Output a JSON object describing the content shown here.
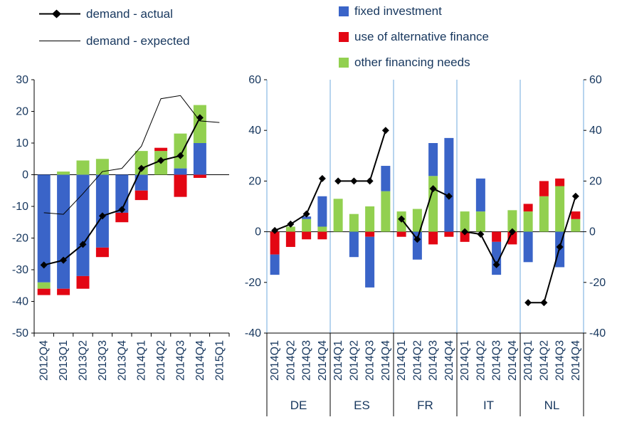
{
  "colors": {
    "blue": "#3a64c8",
    "red": "#e30613",
    "green": "#92d050",
    "line": "#000000",
    "axis": "#000000",
    "text": "#17375e",
    "separator": "#9fc5e8",
    "background": "#ffffff"
  },
  "left_legend": {
    "items": [
      {
        "label": "demand - actual"
      },
      {
        "label": "demand - expected"
      }
    ]
  },
  "right_legend": {
    "items": [
      {
        "label": "fixed investment",
        "color": "blue"
      },
      {
        "label": "use of alternative finance",
        "color": "red"
      },
      {
        "label": "other financing needs",
        "color": "green"
      }
    ]
  },
  "chart_data": [
    {
      "type": "bar",
      "subtype": "stacked bars with overlaid lines",
      "title": "",
      "categories": [
        "2012Q4",
        "2013Q1",
        "2013Q2",
        "2013Q3",
        "2013Q4",
        "2014Q1",
        "2014Q2",
        "2014Q3",
        "2014Q4",
        "2015Q1"
      ],
      "ylim": [
        -50,
        30
      ],
      "yticks": [
        30,
        20,
        10,
        0,
        -10,
        -20,
        -30,
        -40,
        -50
      ],
      "grid": false,
      "bar_series": [
        {
          "name": "fixed investment",
          "color": "blue",
          "values": [
            -34,
            -36,
            -32,
            -23,
            -12,
            -5,
            0,
            2,
            10,
            null
          ]
        },
        {
          "name": "other financing needs",
          "color": "green",
          "values": [
            -2,
            1,
            4.5,
            5,
            0,
            7.5,
            7.5,
            11,
            12,
            null
          ]
        },
        {
          "name": "use of alternative finance",
          "color": "red",
          "values": [
            -2,
            -2,
            -4,
            -3,
            -3,
            -3,
            1,
            -7,
            -1,
            null
          ]
        }
      ],
      "line_series": [
        {
          "name": "demand - actual",
          "marker": "diamond",
          "width": 2,
          "values": [
            -28.5,
            -27,
            -22,
            -13,
            -11,
            2,
            4.5,
            6,
            18,
            null
          ]
        },
        {
          "name": "demand - expected",
          "marker": "none",
          "width": 1,
          "values": [
            -12,
            -12.5,
            -6,
            1,
            2,
            9,
            24,
            25,
            17,
            16.5
          ]
        }
      ]
    },
    {
      "type": "bar",
      "subtype": "grouped stacked bars by country with overlaid line per country",
      "title": "",
      "groups": [
        "DE",
        "ES",
        "FR",
        "IT",
        "NL"
      ],
      "quarters": [
        "2014Q1",
        "2014Q2",
        "2014Q3",
        "2014Q4"
      ],
      "ylim": [
        -40,
        60
      ],
      "yticks": [
        60,
        40,
        20,
        0,
        -20,
        -40
      ],
      "grid": false,
      "legend_position": "top",
      "bar_series": [
        {
          "name": "other financing needs",
          "color": "green",
          "values": [
            [
              0,
              2,
              5,
              2
            ],
            [
              13,
              7,
              10,
              16
            ],
            [
              8,
              9,
              22,
              0
            ],
            [
              8,
              8,
              0,
              8.5
            ],
            [
              8,
              14,
              18,
              5
            ]
          ]
        },
        {
          "name": "use of alternative finance",
          "color": "red",
          "values": [
            [
              -9,
              -6,
              -3,
              -3
            ],
            [
              0,
              0,
              -2,
              0
            ],
            [
              -2,
              0,
              -5,
              -2
            ],
            [
              -4,
              0,
              -4,
              -5
            ],
            [
              3,
              6,
              3,
              3
            ]
          ]
        },
        {
          "name": "fixed investment",
          "color": "blue",
          "values": [
            [
              -8,
              0,
              1,
              12
            ],
            [
              0,
              -10,
              -20,
              10
            ],
            [
              0,
              -11,
              13,
              37
            ],
            [
              0,
              13,
              -13,
              0
            ],
            [
              -12,
              0,
              -14,
              0
            ]
          ]
        }
      ],
      "line_series": [
        {
          "name": "demand - actual",
          "marker": "diamond",
          "width": 2,
          "values": [
            [
              0.5,
              3,
              7,
              21
            ],
            [
              20,
              20,
              20,
              40
            ],
            [
              5,
              -3,
              17,
              14
            ],
            [
              0,
              -1,
              -13,
              0
            ],
            [
              -28,
              -28,
              -6,
              14
            ]
          ]
        }
      ]
    }
  ]
}
